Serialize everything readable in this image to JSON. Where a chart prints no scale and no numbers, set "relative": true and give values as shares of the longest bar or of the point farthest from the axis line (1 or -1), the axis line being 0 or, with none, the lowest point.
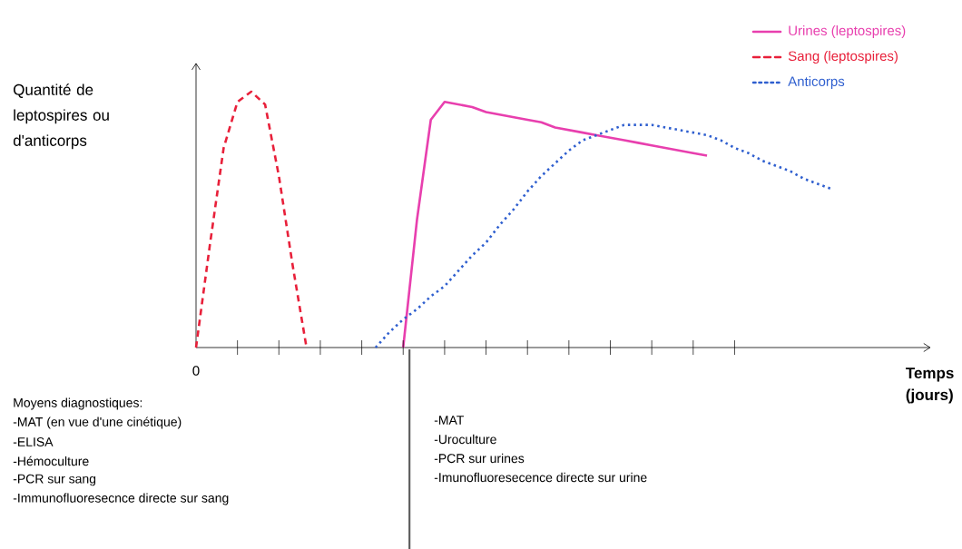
{
  "chart_data": {
    "type": "line",
    "relative": true,
    "xlabel": "Temps (jours)",
    "categories": [
      null,
      null,
      null,
      null,
      null,
      null,
      null,
      null,
      null,
      null,
      null,
      null,
      null,
      null,
      null,
      null,
      null,
      null,
      null,
      null,
      null,
      null,
      null,
      null,
      null,
      null,
      null,
      null,
      null,
      null,
      null,
      null,
      null,
      null,
      null,
      null,
      null,
      null,
      null,
      null,
      null,
      null,
      null,
      null,
      null,
      null,
      null,
      null,
      null,
      null,
      null,
      null,
      null,
      null
    ],
    "legend": "top right",
    "marker": "none",
    "series": [
      {
        "name": "Urines (leptospires)",
        "color": "#e83fae",
        "line_style": "solid",
        "values": [
          null,
          null,
          null,
          null,
          null,
          null,
          null,
          null,
          null,
          null,
          null,
          null,
          null,
          null,
          null,
          0,
          0.5,
          0.89,
          0.96,
          0.95,
          0.94,
          0.92,
          0.91,
          0.9,
          0.89,
          0.88,
          0.86,
          0.85,
          0.84,
          0.83,
          0.82,
          0.81,
          0.8,
          0.79,
          0.78,
          0.77,
          0.76,
          0.75,
          null,
          null,
          null,
          null,
          null,
          null,
          null,
          null,
          null,
          null,
          null,
          null,
          null,
          null,
          null,
          null
        ]
      },
      {
        "name": "Sang (leptospires)",
        "color": "#e8203a",
        "line_style": "dashed",
        "values": [
          0,
          0.4,
          0.78,
          0.96,
          1,
          0.95,
          0.67,
          0.32,
          0,
          null,
          null,
          null,
          null,
          null,
          null,
          null,
          null,
          null,
          null,
          null,
          null,
          null,
          null,
          null,
          null,
          null,
          null,
          null,
          null,
          null,
          null,
          null,
          null,
          null,
          null,
          null,
          null,
          null,
          null,
          null,
          null,
          null,
          null,
          null,
          null,
          null,
          null,
          null,
          null,
          null,
          null,
          null,
          null,
          null
        ]
      },
      {
        "name": "Anticorps",
        "color": "#2f5fcf",
        "line_style": "dotted",
        "values": [
          null,
          null,
          null,
          null,
          null,
          null,
          null,
          null,
          null,
          null,
          null,
          null,
          null,
          0,
          0.06,
          0.11,
          0.15,
          0.2,
          0.24,
          0.3,
          0.36,
          0.41,
          0.48,
          0.54,
          0.61,
          0.67,
          0.72,
          0.77,
          0.81,
          0.83,
          0.85,
          0.87,
          0.87,
          0.87,
          0.86,
          0.85,
          0.84,
          0.83,
          0.81,
          0.78,
          0.76,
          0.73,
          0.71,
          0.69,
          0.66,
          0.64,
          0.62,
          null,
          null,
          null,
          null,
          null,
          null,
          null
        ]
      }
    ],
    "annotations": [
      "0",
      "Quantité de leptospires ou d'anticorps",
      "Moyens diagnostiques:",
      "-MAT (en vue d'une cinétique)",
      "-ELISA",
      "-Hémoculture",
      "-PCR sur sang",
      "-Immunofluoresecnce directe sur sang",
      "-MAT",
      "-Uroculture",
      "-PCR sur urines",
      "-Imunofluoresecence directe sur urine"
    ]
  }
}
